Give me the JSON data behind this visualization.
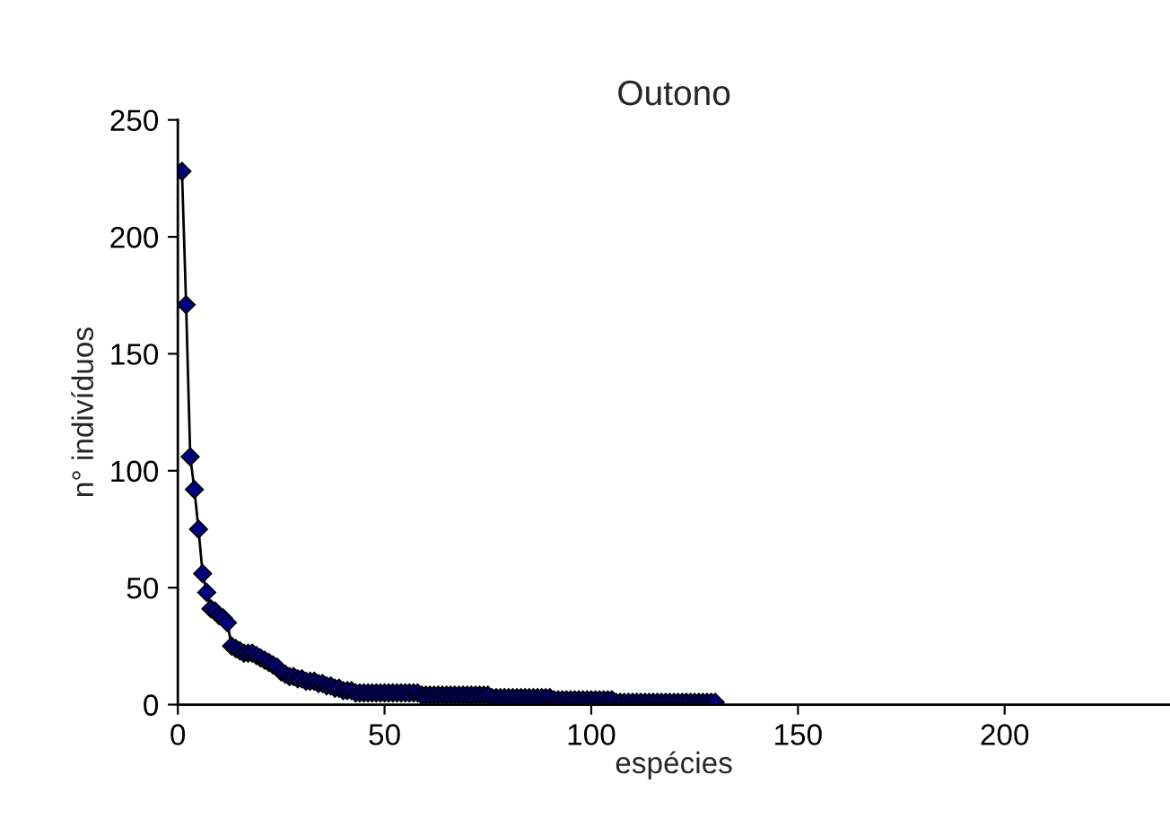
{
  "chart_data": {
    "type": "line",
    "title": "Outono",
    "xlabel": "espécies",
    "ylabel": "n° indivíduos",
    "x": [
      1,
      2,
      3,
      4,
      5,
      6,
      7,
      8,
      9,
      10,
      11,
      12,
      13,
      14,
      15,
      16,
      17,
      18,
      19,
      20,
      21,
      22,
      23,
      24,
      25,
      26,
      27,
      28,
      29,
      30,
      31,
      32,
      33,
      34,
      35,
      36,
      37,
      38,
      39,
      40,
      41,
      42,
      43,
      44,
      45,
      46,
      47,
      48,
      49,
      50,
      51,
      52,
      53,
      54,
      55,
      56,
      57,
      58,
      59,
      60,
      61,
      62,
      63,
      64,
      65,
      66,
      67,
      68,
      69,
      70,
      71,
      72,
      73,
      74,
      75,
      76,
      77,
      78,
      79,
      80,
      81,
      82,
      83,
      84,
      85,
      86,
      87,
      88,
      89,
      90,
      91,
      92,
      93,
      94,
      95,
      96,
      97,
      98,
      99,
      100,
      101,
      102,
      103,
      104,
      105,
      106,
      107,
      108,
      109,
      110,
      111,
      112,
      113,
      114,
      115,
      116,
      117,
      118,
      119,
      120,
      121,
      122,
      123,
      124,
      125,
      126,
      127,
      128,
      129,
      130
    ],
    "series": [
      {
        "color": "#000080",
        "values": [
          228,
          171,
          106,
          92,
          75,
          56,
          48,
          41,
          40,
          38,
          37,
          35,
          25,
          24,
          23,
          22,
          22,
          22,
          21,
          20,
          19,
          18,
          17,
          16,
          14,
          13,
          12,
          12,
          11,
          11,
          10,
          10,
          10,
          9,
          9,
          8,
          8,
          7,
          7,
          6,
          6,
          6,
          5,
          5,
          5,
          5,
          5,
          5,
          5,
          5,
          5,
          5,
          5,
          5,
          5,
          5,
          5,
          5,
          4,
          4,
          4,
          4,
          4,
          4,
          4,
          4,
          4,
          4,
          4,
          4,
          4,
          4,
          4,
          4,
          4,
          3,
          3,
          3,
          3,
          3,
          3,
          3,
          3,
          3,
          3,
          3,
          3,
          3,
          3,
          3,
          2,
          2,
          2,
          2,
          2,
          2,
          2,
          2,
          2,
          2,
          2,
          2,
          2,
          2,
          2,
          1,
          1,
          1,
          1,
          1,
          1,
          1,
          1,
          1,
          1,
          1,
          1,
          1,
          1,
          1,
          1,
          1,
          1,
          1,
          1,
          1,
          1,
          1,
          1,
          1
        ]
      }
    ],
    "xlim": [
      0,
      240
    ],
    "ylim": [
      0,
      250
    ],
    "xticks": [
      0,
      50,
      100,
      150,
      200
    ],
    "yticks": [
      0,
      50,
      100,
      150,
      200,
      250
    ],
    "marker": "diamond",
    "line_style": "solid",
    "grid": false,
    "legend": false
  }
}
